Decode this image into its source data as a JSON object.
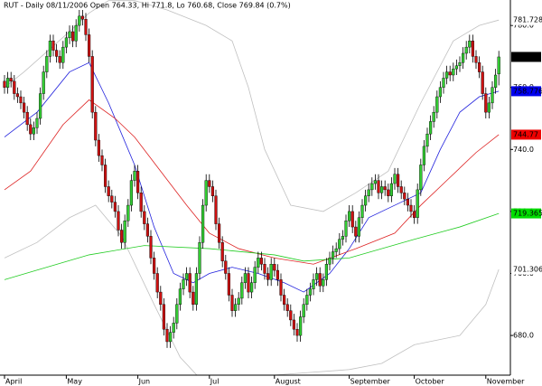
{
  "chart_data": {
    "type": "candlestick",
    "title": "RUT - Daily 08/11/2006 Open 764.33, Hi 771.8, Lo 760.68, Close 769.84 (0.7%)",
    "categories": [
      "April",
      null,
      null,
      null,
      null,
      null,
      null,
      null,
      null,
      null,
      null,
      null,
      null,
      null,
      null,
      null,
      null,
      null,
      null,
      "May",
      null,
      null,
      null,
      null,
      null,
      null,
      null,
      null,
      null,
      null,
      null,
      null,
      null,
      null,
      null,
      null,
      null,
      null,
      null,
      null,
      null,
      "Jun",
      null,
      null,
      null,
      null,
      null,
      null,
      null,
      null,
      null,
      null,
      null,
      null,
      null,
      null,
      null,
      null,
      null,
      null,
      null,
      null,
      null,
      "Jul",
      null,
      null,
      null,
      null,
      null,
      null,
      null,
      null,
      null,
      null,
      null,
      null,
      null,
      null,
      null,
      null,
      null,
      null,
      null,
      "August",
      null,
      null,
      null,
      null,
      null,
      null,
      null,
      null,
      null,
      null,
      null,
      null,
      null,
      null,
      null,
      null,
      null,
      null,
      null,
      null,
      null,
      null,
      "September",
      null,
      null,
      null,
      null,
      null,
      null,
      null,
      null,
      null,
      null,
      null,
      null,
      null,
      null,
      null,
      null,
      null,
      null,
      null,
      "October",
      null,
      null,
      null,
      null,
      null,
      null,
      null,
      null,
      null,
      null,
      null,
      null,
      null,
      null,
      null,
      null,
      null,
      null,
      null,
      null,
      null,
      "November",
      null,
      null,
      null,
      null
    ],
    "open": [
      762,
      760,
      763,
      762,
      758,
      757,
      755,
      752,
      748,
      745,
      747,
      750,
      758,
      765,
      770,
      775,
      772,
      770,
      768,
      773,
      776,
      778,
      775,
      780,
      783,
      782,
      777,
      770,
      752,
      743,
      738,
      735,
      728,
      725,
      723,
      720,
      714,
      710,
      717,
      722,
      730,
      733,
      726,
      720,
      716,
      712,
      705,
      700,
      694,
      690,
      682,
      678,
      681,
      684,
      690,
      695,
      698,
      700,
      694,
      690,
      700,
      710,
      722,
      730,
      728,
      725,
      716,
      710,
      704,
      700,
      693,
      688,
      690,
      692,
      697,
      700,
      694,
      697,
      702,
      705,
      703,
      700,
      698,
      703,
      701,
      698,
      693,
      690,
      688,
      685,
      682,
      680,
      686,
      690,
      693,
      695,
      698,
      700,
      696,
      698,
      703,
      705,
      707,
      708,
      711,
      712,
      717,
      720,
      715,
      712,
      718,
      722,
      725,
      727,
      729,
      730,
      726,
      728,
      727,
      725,
      729,
      732,
      728,
      726,
      724,
      722,
      720,
      718,
      727,
      735,
      741,
      745,
      749,
      752,
      757,
      760,
      763,
      765,
      764,
      766,
      767,
      768,
      771,
      773,
      775,
      770,
      768,
      765,
      758,
      752,
      755,
      760,
      764.33
    ],
    "high": [
      764,
      765,
      765,
      764,
      760,
      759,
      757,
      754,
      750,
      749,
      752,
      760,
      767,
      772,
      777,
      777,
      774,
      772,
      775,
      778,
      780,
      780,
      782,
      785,
      785,
      784,
      779,
      772,
      754,
      745,
      740,
      737,
      730,
      727,
      725,
      722,
      716,
      719,
      724,
      732,
      735,
      735,
      728,
      722,
      718,
      714,
      707,
      702,
      696,
      692,
      684,
      683,
      686,
      692,
      697,
      700,
      702,
      702,
      696,
      702,
      712,
      724,
      732,
      732,
      730,
      727,
      718,
      712,
      706,
      702,
      695,
      692,
      694,
      699,
      702,
      702,
      699,
      704,
      707,
      707,
      705,
      702,
      705,
      705,
      703,
      700,
      695,
      692,
      690,
      687,
      684,
      688,
      692,
      695,
      697,
      700,
      702,
      702,
      700,
      705,
      707,
      709,
      710,
      713,
      714,
      719,
      722,
      722,
      717,
      720,
      724,
      727,
      729,
      731,
      732,
      732,
      730,
      730,
      729,
      731,
      734,
      734,
      730,
      728,
      726,
      724,
      722,
      729,
      737,
      743,
      747,
      751,
      754,
      759,
      762,
      765,
      767,
      767,
      768,
      769,
      770,
      773,
      775,
      777,
      777,
      772,
      770,
      767,
      760,
      757,
      762,
      766,
      771.8
    ],
    "low": [
      758,
      758,
      760,
      756,
      755,
      753,
      750,
      746,
      743,
      743,
      745,
      748,
      756,
      763,
      768,
      770,
      768,
      766,
      766,
      771,
      774,
      773,
      773,
      778,
      780,
      775,
      768,
      750,
      741,
      736,
      733,
      726,
      723,
      721,
      718,
      712,
      708,
      708,
      715,
      720,
      728,
      724,
      718,
      714,
      710,
      703,
      698,
      692,
      688,
      680,
      676,
      676,
      679,
      682,
      688,
      693,
      696,
      692,
      688,
      688,
      698,
      708,
      720,
      726,
      723,
      714,
      708,
      702,
      698,
      691,
      686,
      686,
      688,
      690,
      695,
      692,
      692,
      695,
      700,
      701,
      698,
      696,
      696,
      699,
      696,
      691,
      688,
      686,
      683,
      680,
      678,
      678,
      684,
      688,
      691,
      693,
      696,
      694,
      694,
      696,
      701,
      703,
      705,
      706,
      709,
      710,
      715,
      713,
      710,
      710,
      716,
      720,
      723,
      725,
      727,
      724,
      724,
      725,
      723,
      723,
      727,
      726,
      724,
      722,
      720,
      718,
      716,
      716,
      725,
      733,
      739,
      743,
      747,
      750,
      755,
      758,
      761,
      762,
      762,
      764,
      765,
      766,
      769,
      771,
      768,
      766,
      763,
      756,
      750,
      750,
      753,
      758,
      760.68
    ],
    "close": [
      760,
      763,
      762,
      758,
      757,
      755,
      752,
      748,
      745,
      747,
      750,
      758,
      765,
      770,
      775,
      772,
      770,
      768,
      773,
      776,
      778,
      775,
      780,
      783,
      782,
      777,
      770,
      752,
      743,
      738,
      735,
      728,
      725,
      723,
      720,
      714,
      710,
      717,
      722,
      730,
      733,
      726,
      720,
      716,
      712,
      705,
      700,
      694,
      690,
      682,
      678,
      681,
      684,
      690,
      695,
      698,
      700,
      694,
      690,
      700,
      710,
      722,
      730,
      728,
      725,
      716,
      710,
      704,
      700,
      693,
      688,
      690,
      692,
      697,
      700,
      694,
      697,
      702,
      705,
      703,
      700,
      698,
      703,
      701,
      698,
      693,
      690,
      688,
      685,
      682,
      680,
      686,
      690,
      693,
      695,
      698,
      700,
      696,
      698,
      703,
      705,
      707,
      708,
      711,
      712,
      717,
      720,
      715,
      712,
      718,
      722,
      725,
      727,
      729,
      730,
      726,
      728,
      727,
      725,
      729,
      732,
      728,
      726,
      724,
      722,
      720,
      718,
      727,
      735,
      741,
      745,
      749,
      752,
      757,
      760,
      763,
      765,
      764,
      766,
      767,
      768,
      771,
      773,
      775,
      770,
      768,
      765,
      758,
      752,
      755,
      760,
      764,
      769.84
    ],
    "up_color": "#33cc33",
    "down_color": "#cc1111",
    "lines": [
      {
        "color": "#c0c0c0",
        "x": [
          0,
          6,
          20,
          26,
          32,
          40,
          50,
          62,
          70,
          75,
          80,
          88,
          98,
          108,
          118,
          128,
          138,
          146,
          152
        ],
        "values": [
          760,
          765,
          778,
          784,
          788,
          788,
          785,
          780,
          775,
          760,
          740,
          722,
          720,
          726,
          733,
          755,
          775,
          780,
          781.728
        ]
      },
      {
        "color": "#c0c0c0",
        "x": [
          0,
          10,
          20,
          28,
          36,
          46,
          54,
          62,
          70,
          80,
          93,
          106,
          116,
          126,
          140,
          148,
          152
        ],
        "values": [
          705,
          710,
          718,
          722,
          712,
          690,
          673,
          664,
          663,
          667,
          668,
          669,
          671,
          677,
          680,
          690,
          701.306
        ]
      },
      {
        "color": "#2222dd",
        "x": [
          0,
          10,
          20,
          26,
          32,
          40,
          46,
          52,
          58,
          63,
          70,
          78,
          86,
          92,
          100,
          106,
          112,
          120,
          128,
          134,
          140,
          146,
          152
        ],
        "values": [
          744,
          752,
          765,
          768,
          755,
          735,
          715,
          700,
          697,
          700,
          702,
          700,
          697,
          694,
          700,
          708,
          718,
          722,
          726,
          740,
          752,
          757,
          758.776
        ]
      },
      {
        "color": "#dd2222",
        "x": [
          0,
          8,
          18,
          26,
          34,
          40,
          48,
          56,
          63,
          72,
          83,
          95,
          108,
          120,
          128,
          136,
          145,
          152
        ],
        "values": [
          727,
          733,
          748,
          756,
          750,
          744,
          733,
          722,
          713,
          708,
          705,
          703,
          708,
          713,
          722,
          730,
          739,
          744.77
        ]
      },
      {
        "color": "#22cc22",
        "x": [
          0,
          26,
          43,
          63,
          83,
          92,
          106,
          126,
          140,
          152
        ],
        "values": [
          698,
          706,
          709,
          708,
          706,
          704,
          705,
          711,
          715,
          719.365
        ]
      }
    ],
    "price_tags": [
      {
        "value": 781.728,
        "color": "#ffffff",
        "text_color": "#888888"
      },
      {
        "value": 769.84,
        "color": "#000000",
        "text_color": "#ffffff"
      },
      {
        "value": 758.776,
        "color": "#0000ee",
        "text_color": "#ffffff"
      },
      {
        "value": 744.77,
        "color": "#ee0000",
        "text_color": "#000000"
      },
      {
        "value": 719.365,
        "color": "#00dd00",
        "text_color": "#000000"
      },
      {
        "value": 701.306,
        "color": "#ffffff",
        "text_color": "#888888"
      }
    ],
    "ylim": [
      667.2,
      788.2
    ],
    "yticks": [
      {
        "value": 680,
        "label": "680.0"
      },
      {
        "value": 700,
        "label": "700.0"
      },
      {
        "value": 720,
        "label": "720.0"
      },
      {
        "value": 740,
        "label": "740.0"
      },
      {
        "value": 760,
        "label": "760.0"
      },
      {
        "value": 780,
        "label": "780.0"
      }
    ]
  }
}
